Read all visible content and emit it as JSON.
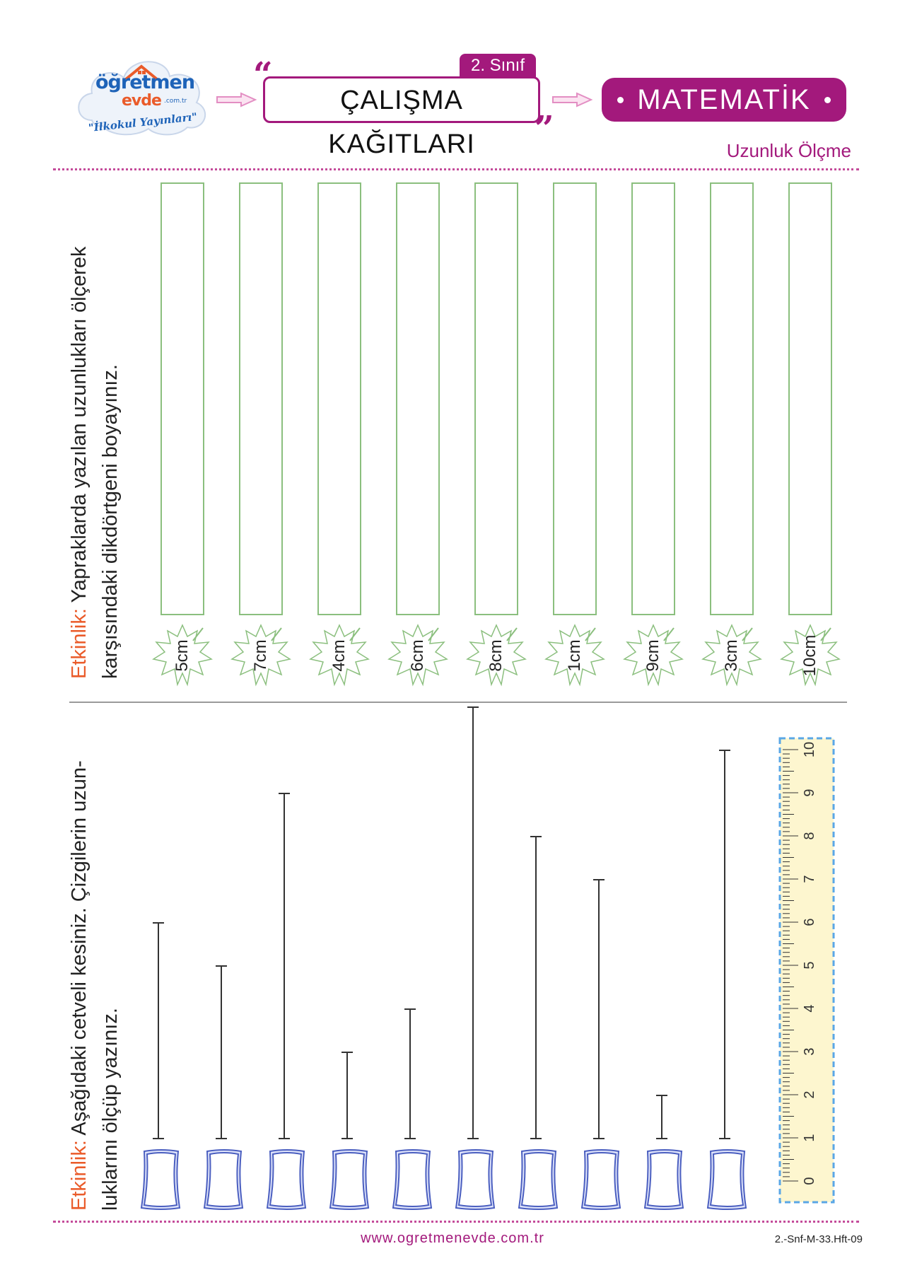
{
  "header": {
    "logo_main": "öğretmen",
    "logo_sub": "evde",
    "logo_domain": ".com.tr",
    "logo_tagline": "\"İlkokul Yayınları\"",
    "grade": "2. Sınıf",
    "title": "ÇALIŞMA KAĞITLARI",
    "subject": "MATEMATİK",
    "topic": "Uzunluk Ölçme"
  },
  "activity1": {
    "label": "Etkinlik:",
    "line1": " Yapraklarda yazılan uzunlukları ölçerek",
    "line2": "karşısındaki dikdörtgeni boyayınız.",
    "leaves": [
      "5cm",
      "7cm",
      "4cm",
      "6cm",
      "8cm",
      "1cm",
      "9cm",
      "3cm",
      "10cm"
    ]
  },
  "activity2": {
    "label": "Etkinlik:",
    "line1": " Aşağıdaki cetveli kesiniz. Çizgilerin uzun-",
    "line2": "luklarını ölçüp yazınız.",
    "line_lengths_cm": [
      5,
      4,
      8,
      2,
      3,
      10,
      7,
      6,
      1,
      9
    ],
    "ruler_numbers": [
      "0",
      "1",
      "2",
      "3",
      "4",
      "5",
      "6",
      "7",
      "8",
      "9",
      "10"
    ]
  },
  "footer": {
    "url": "www.ogretmenevde.com.tr",
    "code": "2.-Snf-M-33.Hft-09"
  },
  "colors": {
    "brand_purple": "#a3197c",
    "label_orange": "#ea5b2a",
    "leaf_green": "#8bbf7e",
    "paper_blue": "#4b5fc0",
    "ruler_yellow": "#fdf6cf"
  }
}
